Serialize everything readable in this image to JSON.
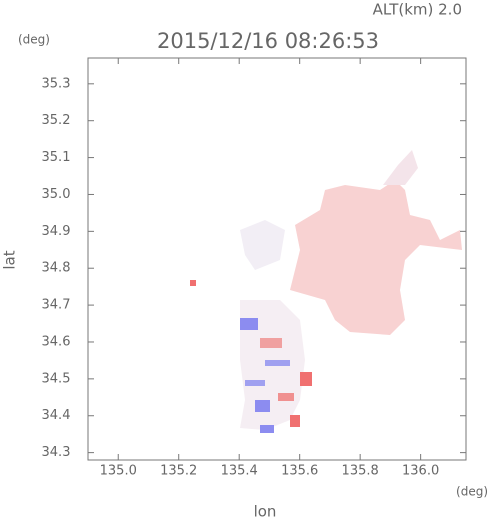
{
  "chart_data": {
    "type": "map",
    "title": "2015/12/16 08:26:53",
    "subtitle": "ALT(km) 2.0",
    "x_label": "lon",
    "y_label": "lat",
    "x_unit": "(deg)",
    "y_unit": "(deg)",
    "xlim": [
      134.9,
      136.15
    ],
    "xticks": [
      {
        "value": 135.0,
        "label": "135.0"
      },
      135.2,
      135.4,
      135.6,
      135.8,
      {
        "value": 136.0,
        "label": "136.0"
      }
    ],
    "ylim": [
      34.28,
      35.37
    ],
    "yticks": [
      34.3,
      34.4,
      34.5,
      34.6,
      34.7,
      34.8,
      34.9,
      {
        "value": 35.0,
        "label": "35.0"
      },
      35.1,
      35.2,
      35.3
    ]
  }
}
